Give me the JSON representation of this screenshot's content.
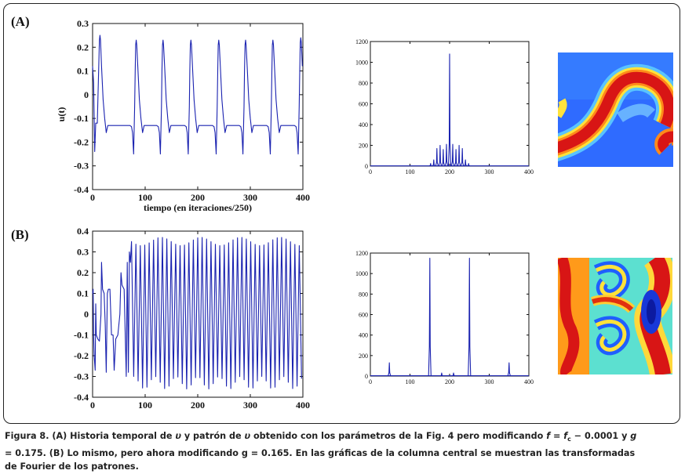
{
  "panels": {
    "a_label": "(A)",
    "b_label": "(B)"
  },
  "colors": {
    "line": "#1a22b0",
    "axis": "#111111"
  },
  "caption": {
    "line1_prefix": "Figura 8. (A) Historia temporal de ",
    "var_u": "υ",
    "line1_mid": " y patrón de ",
    "line1_after": " obtenido con los parámetros de la Fig. 4 pero modificando ",
    "f": "f",
    "eq": " = ",
    "fc": "f",
    "fc_sub": "c",
    "minus": " − 0.0001 y ",
    "g": "g",
    "line2": "= 0.175. (B) Lo mismo, pero ahora modificando g = 0.165. En las gráficas de la columna central se muestran las transformadas",
    "line3": "de Fourier de los patrones."
  },
  "chart_data": [
    {
      "id": "A-time",
      "type": "line",
      "title": "",
      "xlabel": "tiempo (en iteraciones/250)",
      "ylabel": "u(t)",
      "xlim": [
        0,
        400
      ],
      "ylim": [
        -0.4,
        0.3
      ],
      "xticks": [
        "0",
        "100",
        "200",
        "300",
        "400"
      ],
      "yticks": [
        "0.3",
        "0.2",
        "0.1",
        "0",
        "-0.1",
        "-0.2",
        "-0.3",
        "-0.4"
      ],
      "baseline": -0.13,
      "spikes": [
        {
          "t": 14,
          "peak": 0.25,
          "dip": -0.25
        },
        {
          "t": 83,
          "peak": 0.23,
          "dip": -0.25
        },
        {
          "t": 134,
          "peak": 0.23,
          "dip": -0.25
        },
        {
          "t": 187,
          "peak": 0.23,
          "dip": -0.25
        },
        {
          "t": 240,
          "peak": 0.23,
          "dip": -0.25
        },
        {
          "t": 291,
          "peak": 0.23,
          "dip": -0.25
        },
        {
          "t": 343,
          "peak": 0.23,
          "dip": -0.25
        },
        {
          "t": 396,
          "peak": 0.24,
          "dip": -0.25
        }
      ]
    },
    {
      "id": "A-fourier",
      "type": "line",
      "title": "",
      "xlim": [
        0,
        400
      ],
      "ylim": [
        0,
        1200
      ],
      "xticks": [
        "0",
        "100",
        "200",
        "300",
        "400"
      ],
      "yticks": [
        "1200",
        "1000",
        "800",
        "600",
        "400",
        "200",
        "0"
      ],
      "peaks": [
        {
          "x": 152,
          "y": 25
        },
        {
          "x": 160,
          "y": 60
        },
        {
          "x": 168,
          "y": 170
        },
        {
          "x": 176,
          "y": 200
        },
        {
          "x": 184,
          "y": 160
        },
        {
          "x": 192,
          "y": 210
        },
        {
          "x": 200,
          "y": 1080
        },
        {
          "x": 208,
          "y": 210
        },
        {
          "x": 216,
          "y": 160
        },
        {
          "x": 224,
          "y": 200
        },
        {
          "x": 232,
          "y": 170
        },
        {
          "x": 240,
          "y": 60
        },
        {
          "x": 248,
          "y": 25
        }
      ]
    },
    {
      "id": "B-time",
      "type": "line",
      "title": "",
      "xlim": [
        0,
        400
      ],
      "ylim": [
        -0.4,
        0.4
      ],
      "xticks": [
        "0",
        "100",
        "200",
        "300",
        "400"
      ],
      "yticks": [
        "0.4",
        "0.3",
        "0.2",
        "0.1",
        "0",
        "-0.1",
        "-0.2",
        "-0.3",
        "-0.4"
      ]
    },
    {
      "id": "B-fourier",
      "type": "line",
      "title": "",
      "xlim": [
        0,
        400
      ],
      "ylim": [
        0,
        1200
      ],
      "xticks": [
        "0",
        "100",
        "200",
        "300",
        "400"
      ],
      "yticks": [
        "1200",
        "1000",
        "800",
        "600",
        "400",
        "200",
        "0"
      ],
      "peaks": [
        {
          "x": 48,
          "y": 130
        },
        {
          "x": 150,
          "y": 1150
        },
        {
          "x": 180,
          "y": 30
        },
        {
          "x": 210,
          "y": 30
        },
        {
          "x": 250,
          "y": 1150
        },
        {
          "x": 350,
          "y": 130
        }
      ]
    }
  ]
}
